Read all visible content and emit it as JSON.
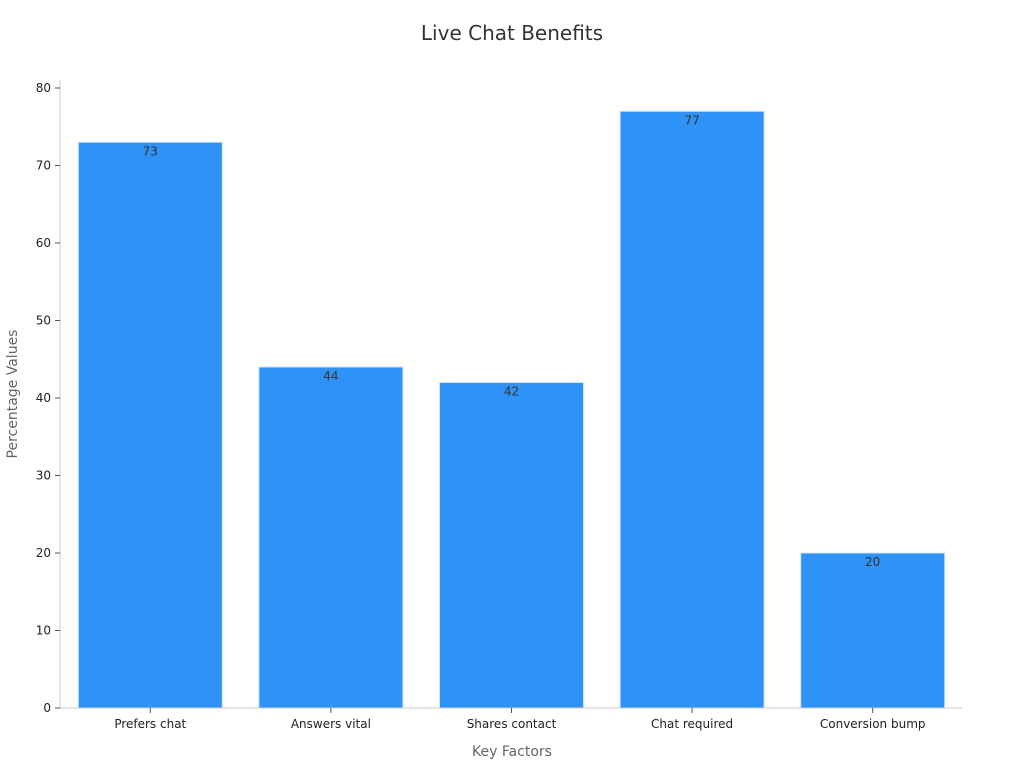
{
  "chart_data": {
    "type": "bar",
    "title": "Live Chat Benefits",
    "xlabel": "Key Factors",
    "ylabel": "Percentage Values",
    "categories": [
      "Prefers chat",
      "Answers vital",
      "Shares contact",
      "Chat required",
      "Conversion bump"
    ],
    "values": [
      73,
      44,
      42,
      77,
      20
    ],
    "ylim": [
      0,
      80
    ],
    "yticks": [
      0,
      10,
      20,
      30,
      40,
      50,
      60,
      70,
      80
    ],
    "grid": false,
    "legend": "none",
    "bar_color": "#2f92f7"
  }
}
